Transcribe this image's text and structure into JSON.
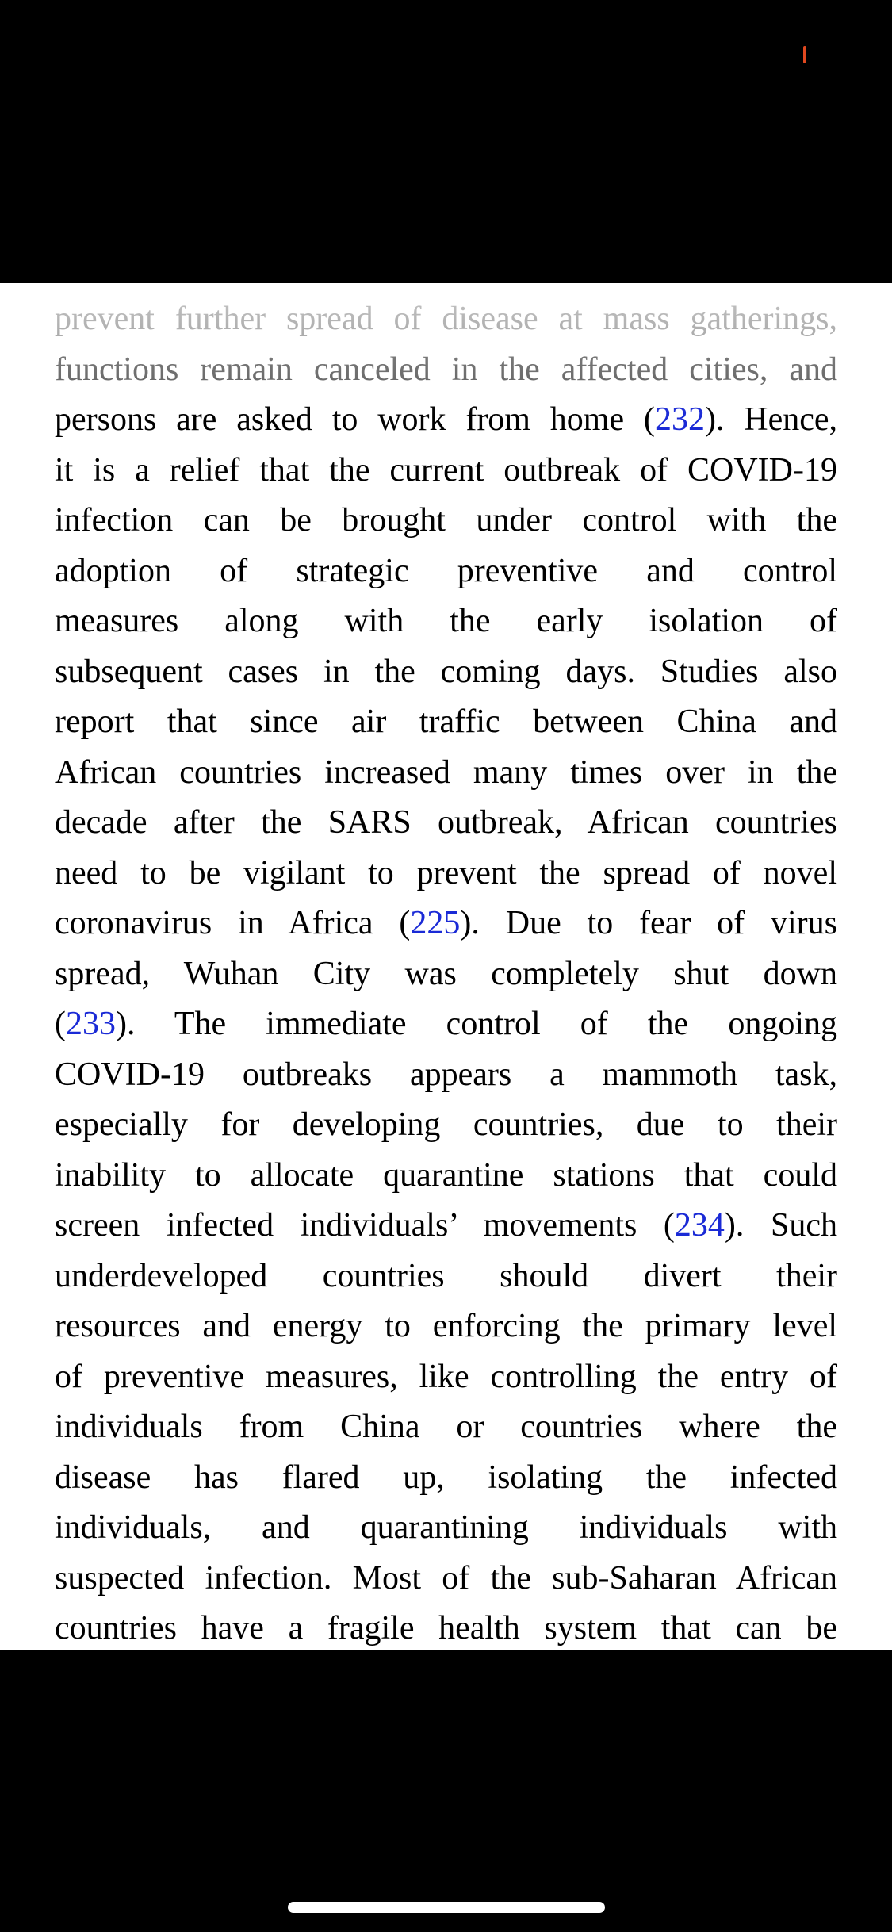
{
  "article": {
    "lines": [
      [
        "prevent further spread of disease at mass gatherings,"
      ],
      [
        "functions remain canceled in the affected cities, and"
      ],
      [
        "persons are asked to work from home (",
        {
          "ref": "232"
        },
        "). Hence,"
      ],
      [
        "it is a relief that the current outbreak of COVID-19"
      ],
      [
        "infection can be brought under control with the"
      ],
      [
        "adoption of strategic preventive and control"
      ],
      [
        "measures along with the early isolation of"
      ],
      [
        "subsequent cases in the coming days. Studies also"
      ],
      [
        "report that since air traffic between China and"
      ],
      [
        "African countries increased many times over in the"
      ],
      [
        "decade after the SARS outbreak, African countries"
      ],
      [
        "need to be vigilant to prevent the spread of novel"
      ],
      [
        "coronavirus in Africa (",
        {
          "ref": "225"
        },
        "). Due to fear of virus"
      ],
      [
        "spread, Wuhan City was completely shut down"
      ],
      [
        "(",
        {
          "ref": "233"
        },
        "). The immediate control of the ongoing"
      ],
      [
        "COVID-19 outbreaks appears a mammoth task,"
      ],
      [
        "especially for developing countries, due to their"
      ],
      [
        "inability to allocate quarantine stations that could"
      ],
      [
        "screen infected individuals’ movements (",
        {
          "ref": "234"
        },
        "). Such"
      ],
      [
        "underdeveloped countries should divert their"
      ],
      [
        "resources and energy to enforcing the primary level"
      ],
      [
        "of preventive measures, like controlling the entry of"
      ],
      [
        "individuals from China or countries where the"
      ],
      [
        "disease has flared up, isolating the infected"
      ],
      [
        "individuals, and quarantining individuals with"
      ],
      [
        "suspected infection. Most of the sub-Saharan African"
      ],
      [
        "countries have a fragile health system that can be"
      ]
    ]
  },
  "colors": {
    "background_chrome": "#000000",
    "page": "#ffffff",
    "text": "#000000",
    "reference_link": "#1a2ad6",
    "indicator": "#e0481f",
    "home_indicator": "#ffffff"
  },
  "icons": {
    "status_indicator": "recording-indicator-icon",
    "home_indicator": "home-indicator-bar"
  }
}
